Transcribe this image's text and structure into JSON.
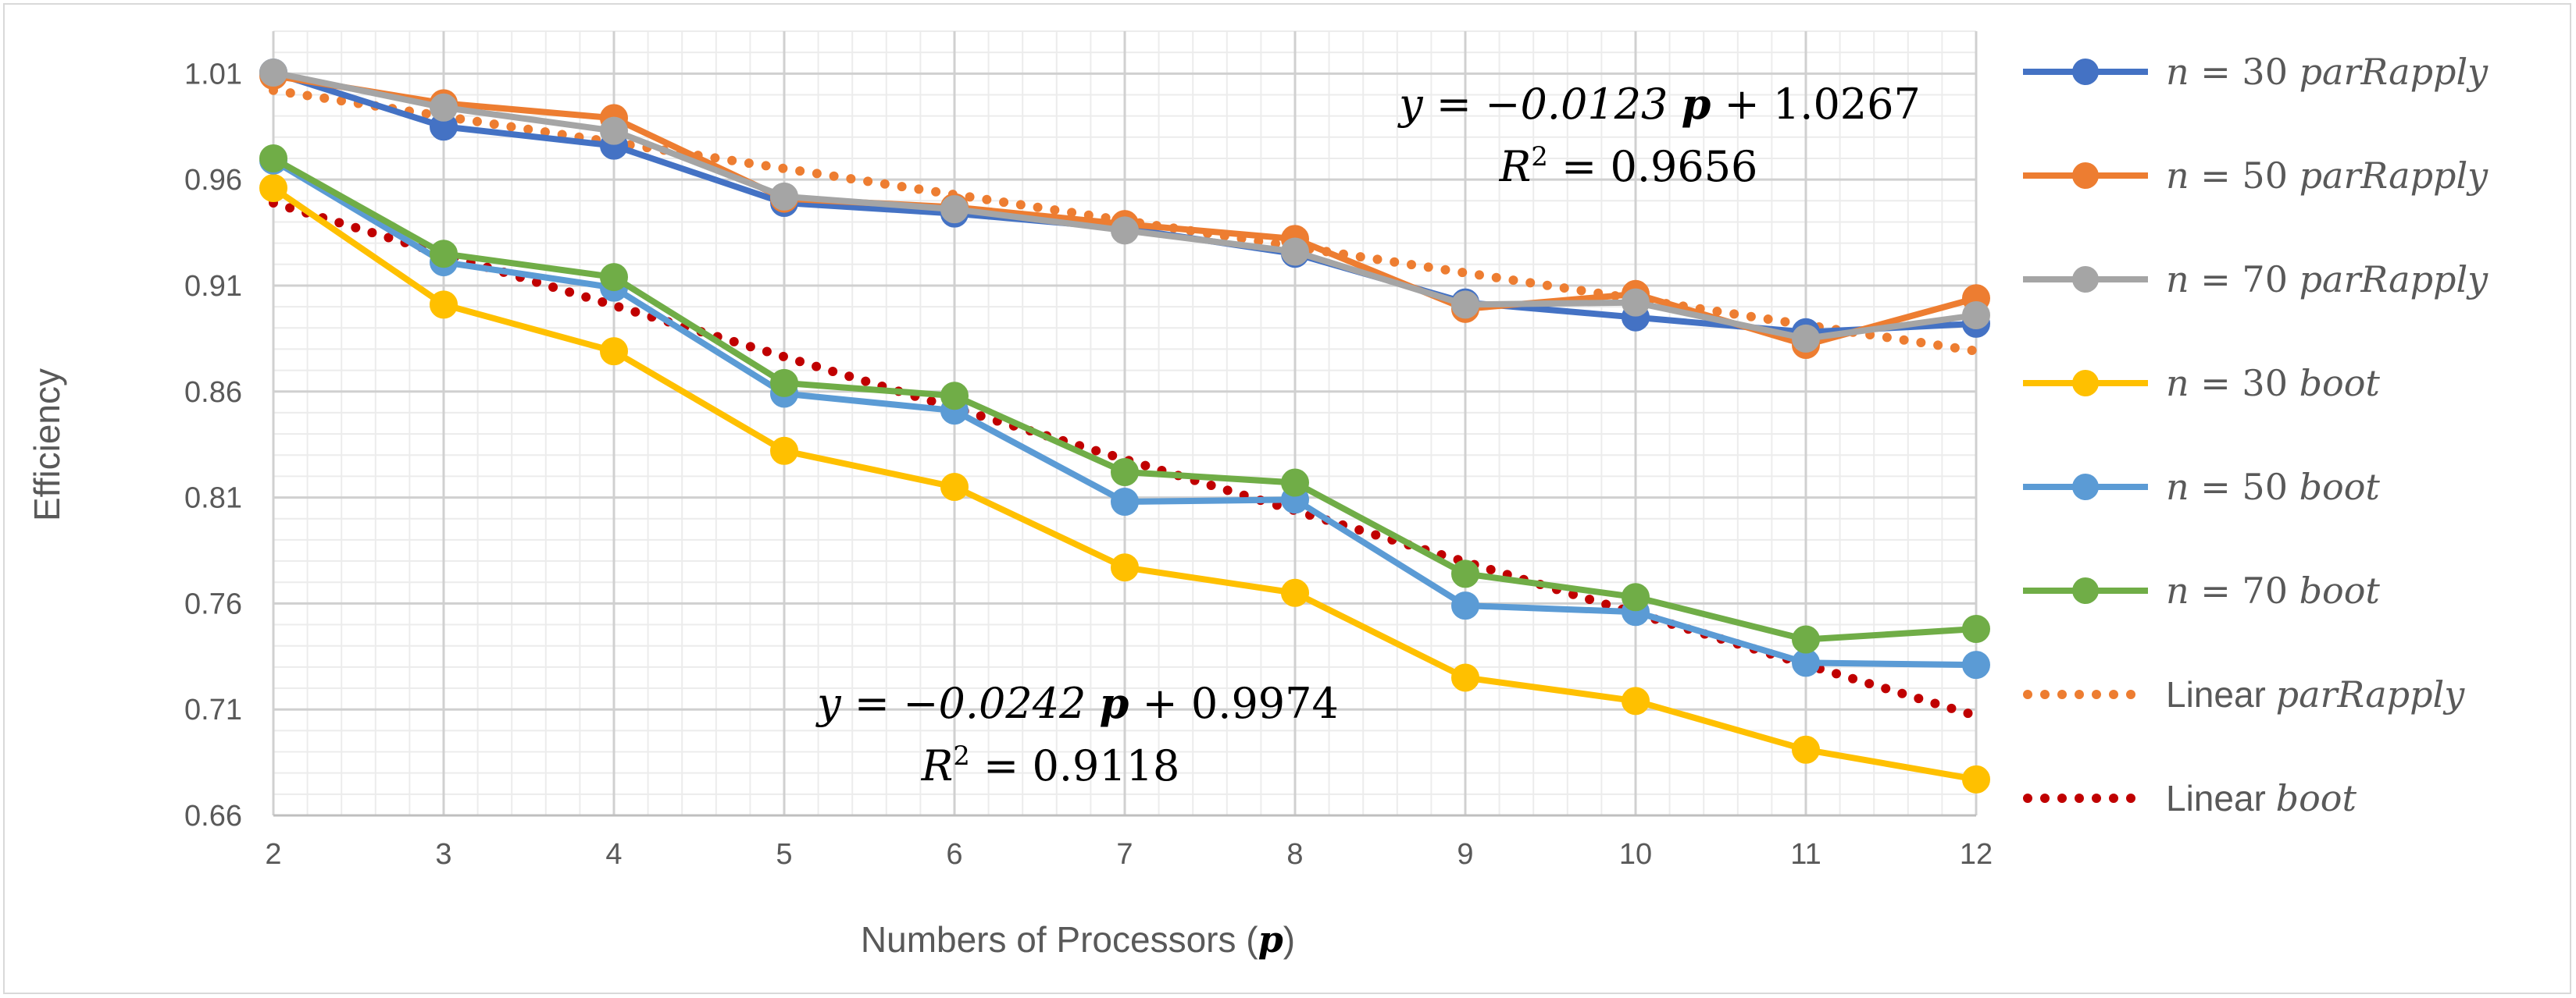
{
  "chart_data": {
    "type": "line",
    "title": "",
    "xlabel": "Numbers of Processors (p)",
    "xlabel_text": "Numbers of Processors (",
    "xlabel_symbol": "p",
    "xlabel_close": ")",
    "ylabel": "Efficiency",
    "x": [
      2,
      3,
      4,
      5,
      6,
      7,
      8,
      9,
      10,
      11,
      12
    ],
    "x_tick_labels": [
      "2",
      "3",
      "4",
      "5",
      "6",
      "7",
      "8",
      "9",
      "10",
      "11",
      "12"
    ],
    "ylim": [
      0.66,
      1.03
    ],
    "y_ticks": [
      0.66,
      0.71,
      0.76,
      0.81,
      0.86,
      0.91,
      0.96,
      1.01
    ],
    "y_tick_labels": [
      "0.66",
      "0.71",
      "0.76",
      "0.81",
      "0.86",
      "0.91",
      "0.96",
      "1.01"
    ],
    "grid": true,
    "legend_position": "right",
    "series": [
      {
        "name": "n = 30  parRapply",
        "n_label": "n",
        "rest": " = 30  ",
        "method": "parRapply",
        "color": "#4472C4",
        "style": "solid",
        "values": [
          1.0105,
          0.985,
          0.976,
          0.949,
          0.944,
          0.937,
          0.925,
          0.902,
          0.895,
          0.888,
          0.892
        ]
      },
      {
        "name": "n = 50  parRapply",
        "n_label": "n",
        "rest": " = 50  ",
        "method": "parRapply",
        "color": "#ED7D31",
        "style": "solid",
        "values": [
          1.009,
          0.996,
          0.989,
          0.951,
          0.947,
          0.939,
          0.932,
          0.899,
          0.906,
          0.882,
          0.904
        ]
      },
      {
        "name": "n = 70  parRapply",
        "n_label": "n",
        "rest": " = 70  ",
        "method": "parRapply",
        "color": "#A5A5A5",
        "style": "solid",
        "values": [
          1.0105,
          0.994,
          0.983,
          0.952,
          0.946,
          0.936,
          0.926,
          0.901,
          0.902,
          0.885,
          0.896
        ]
      },
      {
        "name": "n = 30  boot",
        "n_label": "n",
        "rest": " = 30  ",
        "method": "boot",
        "color": "#FFC000",
        "style": "solid",
        "values": [
          0.956,
          0.901,
          0.879,
          0.832,
          0.815,
          0.777,
          0.765,
          0.725,
          0.714,
          0.691,
          0.677
        ]
      },
      {
        "name": "n = 50  boot",
        "n_label": "n",
        "rest": " = 50  ",
        "method": "boot",
        "color": "#5B9BD5",
        "style": "solid",
        "values": [
          0.969,
          0.921,
          0.909,
          0.859,
          0.851,
          0.808,
          0.809,
          0.759,
          0.756,
          0.732,
          0.731
        ]
      },
      {
        "name": "n = 70  boot",
        "n_label": "n",
        "rest": " = 70  ",
        "method": "boot",
        "color": "#70AD47",
        "style": "solid",
        "values": [
          0.97,
          0.925,
          0.914,
          0.864,
          0.858,
          0.822,
          0.817,
          0.774,
          0.763,
          0.743,
          0.748
        ]
      },
      {
        "name": "Linear parRapply",
        "prefix": "Linear ",
        "method": "parRapply",
        "color": "#ED7D31",
        "style": "dotted",
        "slope": -0.0123,
        "intercept": 1.0267
      },
      {
        "name": "Linear boot",
        "prefix": "Linear ",
        "method": "boot",
        "color": "#C00000",
        "style": "dotted",
        "slope": -0.0242,
        "intercept": 0.9974
      }
    ],
    "annotations": [
      {
        "id": "eq-parRapply",
        "equation_parts": [
          "y = −0.0123 ",
          "p",
          " + 1.0267"
        ],
        "r2_parts": [
          "R",
          "2",
          " = 0.9656"
        ]
      },
      {
        "id": "eq-boot",
        "equation_parts": [
          "y = −0.0242 ",
          "p",
          " + 0.9974"
        ],
        "r2_parts": [
          "R",
          "2",
          " = 0.9118"
        ]
      }
    ]
  }
}
